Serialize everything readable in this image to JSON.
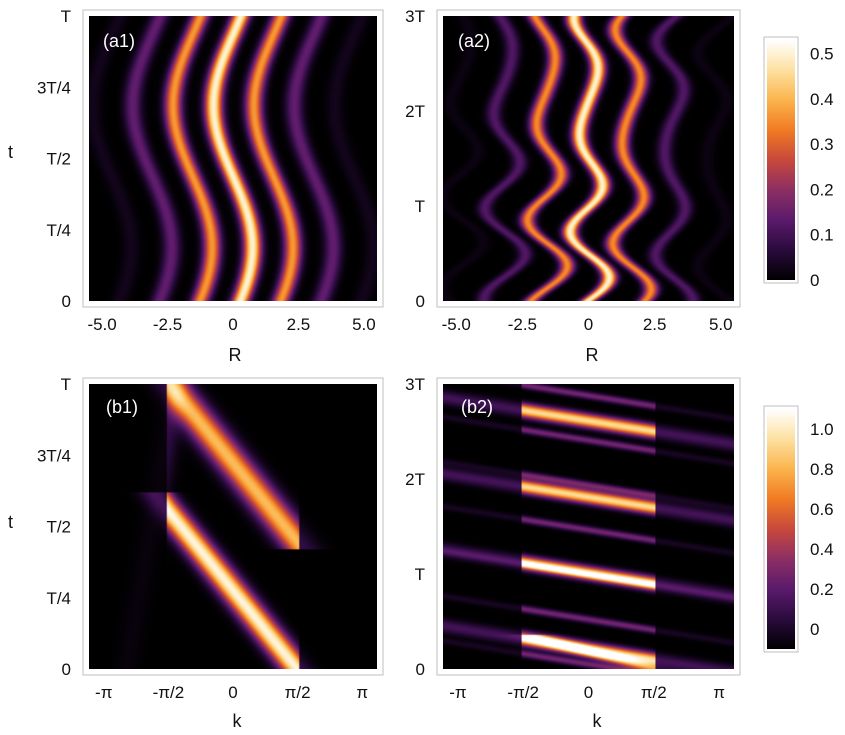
{
  "colors": {
    "colormap": [
      "#000000",
      "#2a0b3d",
      "#5a1a6b",
      "#8c2f63",
      "#c8483c",
      "#f07b22",
      "#fbb44d",
      "#fde1a0",
      "#ffffff"
    ],
    "frame": "#bfbfbf",
    "panel_label": "#ffffff"
  },
  "chart_data": [
    {
      "id": "a1",
      "type": "heatmap",
      "panel_label": "(a1)",
      "xlabel": "R",
      "ylabel": "t",
      "xlim": [
        -5.5,
        5.5
      ],
      "ylim": [
        0,
        1
      ],
      "xticks": [
        {
          "v": -5,
          "label": "-5.0"
        },
        {
          "v": -2.5,
          "label": "-2.5"
        },
        {
          "v": 0,
          "label": "0"
        },
        {
          "v": 2.5,
          "label": "2.5"
        },
        {
          "v": 5,
          "label": "5.0"
        }
      ],
      "yticks": [
        {
          "v": 0,
          "label": "0"
        },
        {
          "v": 0.25,
          "label": "T/4"
        },
        {
          "v": 0.5,
          "label": "T/2"
        },
        {
          "v": 0.75,
          "label": "3T/4"
        },
        {
          "v": 1,
          "label": "T"
        }
      ],
      "zmax": 0.55
    },
    {
      "id": "a2",
      "type": "heatmap",
      "panel_label": "(a2)",
      "xlabel": "R",
      "ylabel": "",
      "xlim": [
        -5.5,
        5.5
      ],
      "ylim": [
        0,
        3
      ],
      "xticks": [
        {
          "v": -5,
          "label": "-5.0"
        },
        {
          "v": -2.5,
          "label": "-2.5"
        },
        {
          "v": 0,
          "label": "0"
        },
        {
          "v": 2.5,
          "label": "2.5"
        },
        {
          "v": 5,
          "label": "5.0"
        }
      ],
      "yticks": [
        {
          "v": 0,
          "label": "0"
        },
        {
          "v": 1,
          "label": "T"
        },
        {
          "v": 2,
          "label": "2T"
        },
        {
          "v": 3,
          "label": "3T"
        }
      ],
      "zmax": 0.55
    },
    {
      "id": "b1",
      "type": "heatmap",
      "panel_label": "(b1)",
      "xlabel": "k",
      "ylabel": "t",
      "xlim": [
        -3.5,
        3.5
      ],
      "ylim": [
        0,
        1
      ],
      "xticks": [
        {
          "v": -3.14159,
          "label": "-π"
        },
        {
          "v": -1.5708,
          "label": "-π/2"
        },
        {
          "v": 0,
          "label": "0"
        },
        {
          "v": 1.5708,
          "label": "π/2"
        },
        {
          "v": 3.14159,
          "label": "π"
        }
      ],
      "yticks": [
        {
          "v": 0,
          "label": "0"
        },
        {
          "v": 0.25,
          "label": "T/4"
        },
        {
          "v": 0.5,
          "label": "T/2"
        },
        {
          "v": 0.75,
          "label": "3T/4"
        },
        {
          "v": 1,
          "label": "T"
        }
      ],
      "zmax": 1.1
    },
    {
      "id": "b2",
      "type": "heatmap",
      "panel_label": "(b2)",
      "xlabel": "k",
      "ylabel": "",
      "xlim": [
        -3.5,
        3.5
      ],
      "ylim": [
        0,
        3
      ],
      "xticks": [
        {
          "v": -3.14159,
          "label": "-π"
        },
        {
          "v": -1.5708,
          "label": "-π/2"
        },
        {
          "v": 0,
          "label": "0"
        },
        {
          "v": 1.5708,
          "label": "π/2"
        },
        {
          "v": 3.14159,
          "label": "π"
        }
      ],
      "yticks": [
        {
          "v": 0,
          "label": "0"
        },
        {
          "v": 1,
          "label": "T"
        },
        {
          "v": 2,
          "label": "2T"
        },
        {
          "v": 3,
          "label": "3T"
        }
      ],
      "zmax": 1.1
    }
  ],
  "colorbars": [
    {
      "id": "cb-a",
      "range": [
        0,
        0.53
      ],
      "ticks": [
        {
          "v": 0,
          "label": "0"
        },
        {
          "v": 0.1,
          "label": "0.1"
        },
        {
          "v": 0.2,
          "label": "0.2"
        },
        {
          "v": 0.3,
          "label": "0.3"
        },
        {
          "v": 0.4,
          "label": "0.4"
        },
        {
          "v": 0.5,
          "label": "0.5"
        }
      ]
    },
    {
      "id": "cb-b",
      "range": [
        -0.1,
        1.1
      ],
      "ticks": [
        {
          "v": 0,
          "label": "0"
        },
        {
          "v": 0.2,
          "label": "0.2"
        },
        {
          "v": 0.4,
          "label": "0.4"
        },
        {
          "v": 0.6,
          "label": "0.6"
        },
        {
          "v": 0.8,
          "label": "0.8"
        },
        {
          "v": 1.0,
          "label": "1.0"
        }
      ]
    }
  ]
}
